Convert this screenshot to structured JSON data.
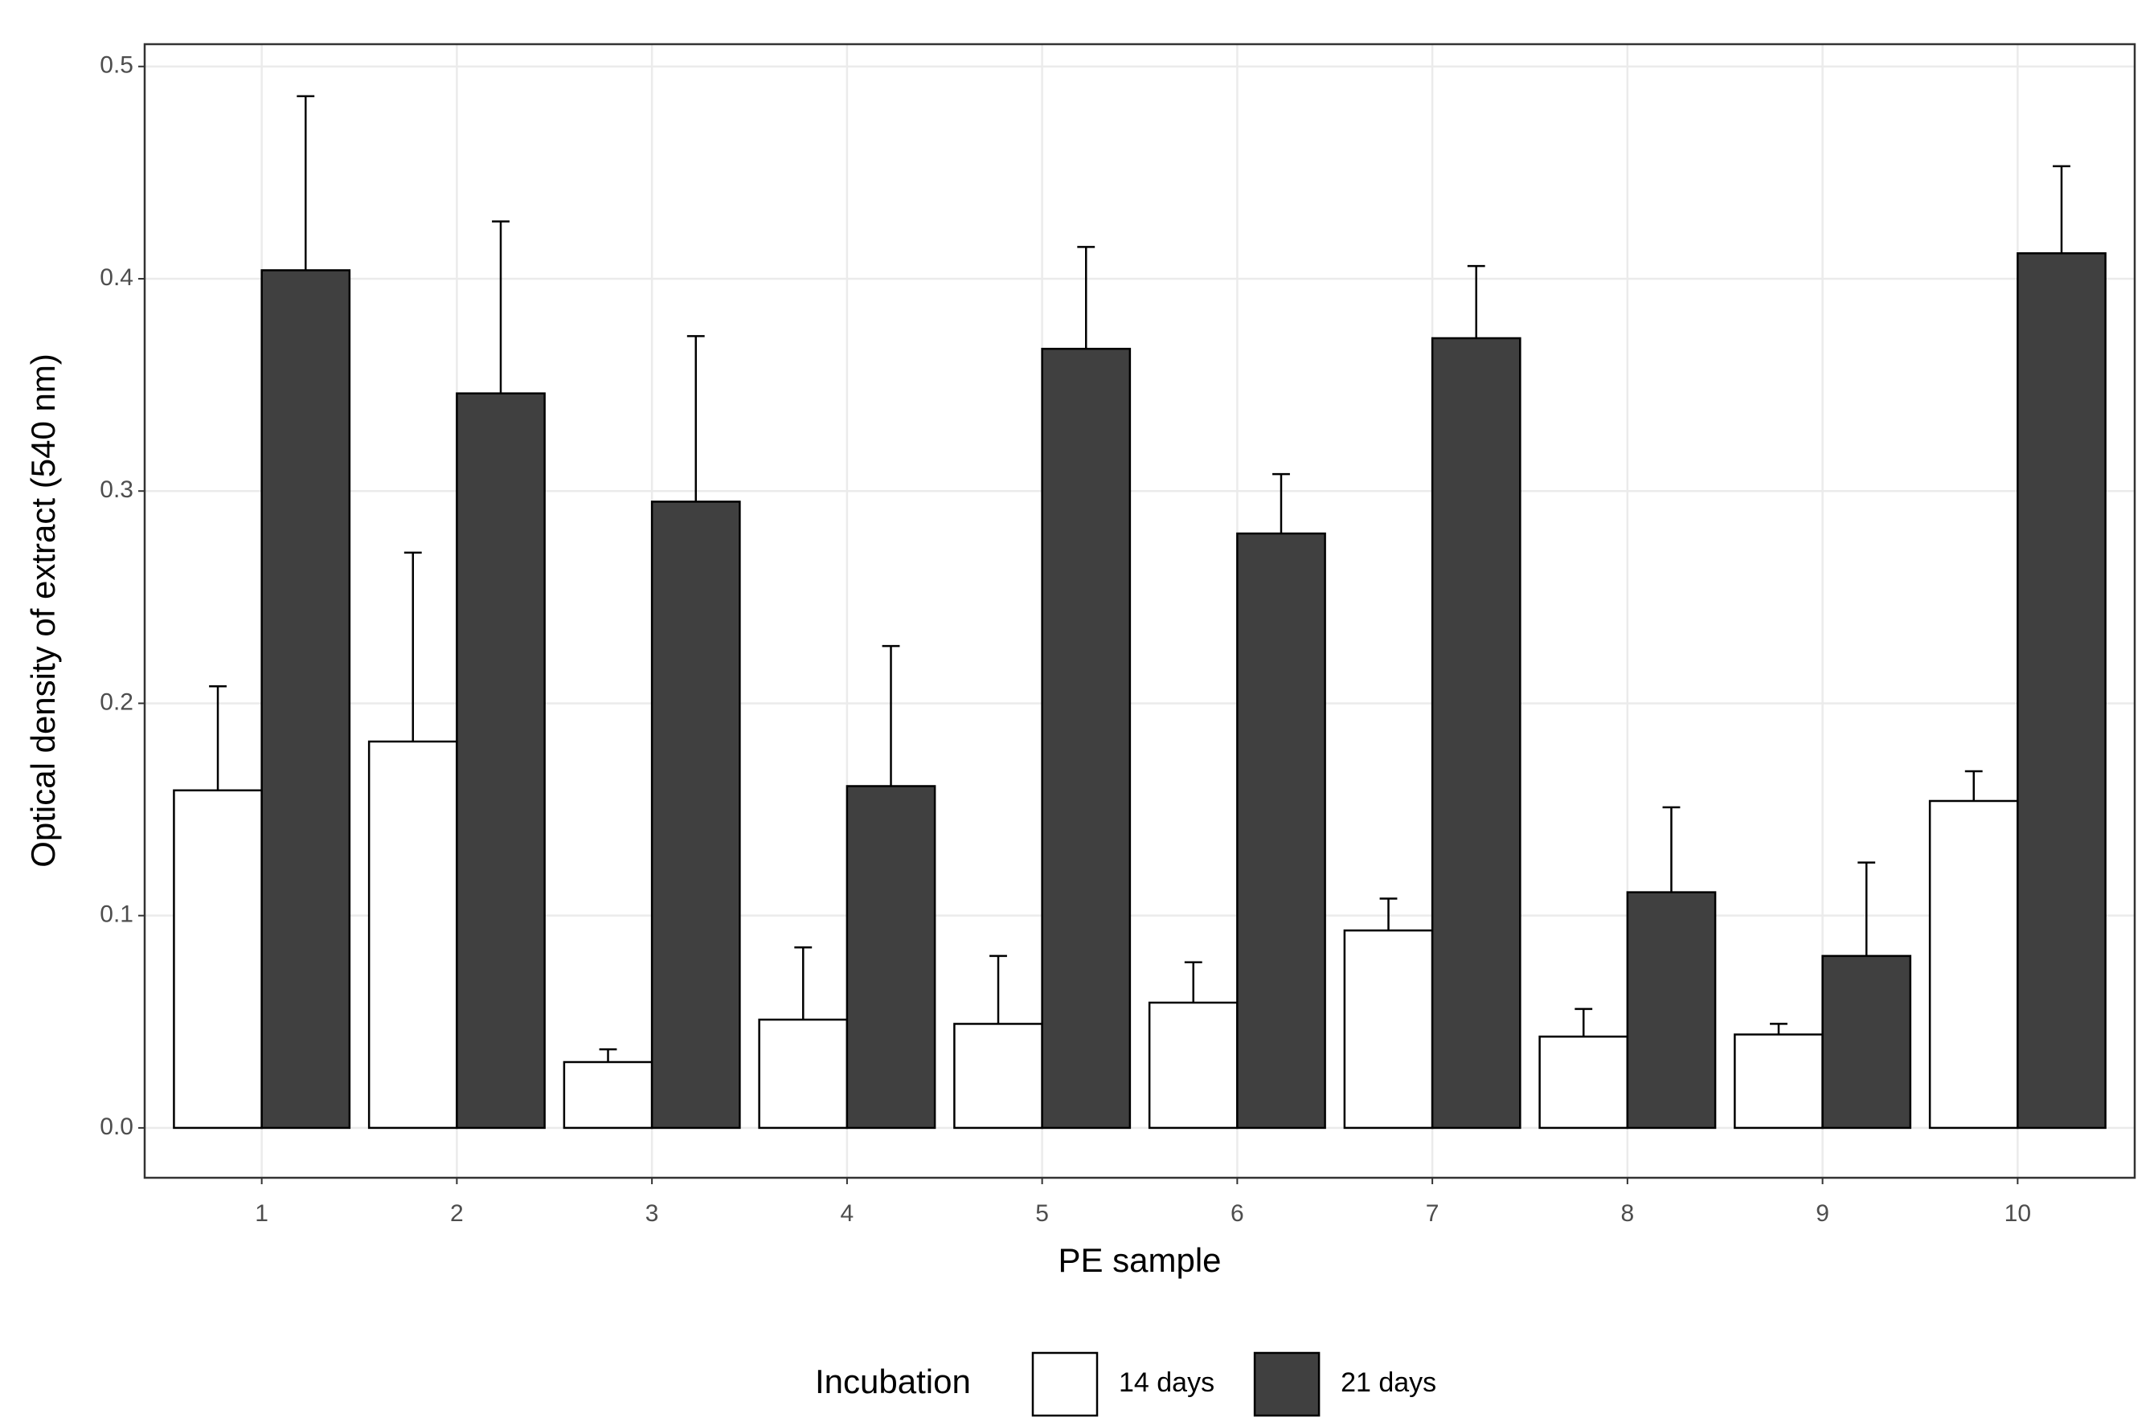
{
  "chart_data": {
    "type": "bar",
    "x_label": "PE sample",
    "y_label": "Optical density of extract (540 nm)",
    "legend_title": "Incubation",
    "legend_position": "bottom",
    "grid": true,
    "categories": [
      "1",
      "2",
      "3",
      "4",
      "5",
      "6",
      "7",
      "8",
      "9",
      "10"
    ],
    "series": [
      {
        "name": "14 days",
        "color": "#ffffff",
        "values": [
          0.159,
          0.182,
          0.031,
          0.051,
          0.049,
          0.059,
          0.093,
          0.043,
          0.044,
          0.154
        ],
        "errors": [
          0.049,
          0.089,
          0.006,
          0.034,
          0.032,
          0.019,
          0.015,
          0.013,
          0.005,
          0.014
        ]
      },
      {
        "name": "21 days",
        "color": "#404040",
        "values": [
          0.404,
          0.346,
          0.295,
          0.161,
          0.367,
          0.28,
          0.372,
          0.111,
          0.081,
          0.412
        ],
        "errors": [
          0.082,
          0.081,
          0.078,
          0.066,
          0.048,
          0.028,
          0.034,
          0.04,
          0.044,
          0.041
        ]
      }
    ],
    "ylim": [
      -0.0235,
      0.5105
    ],
    "yticks": [
      {
        "value": 0,
        "label": "0.0"
      },
      0.1,
      0.2,
      0.3,
      0.4,
      0.5
    ]
  }
}
